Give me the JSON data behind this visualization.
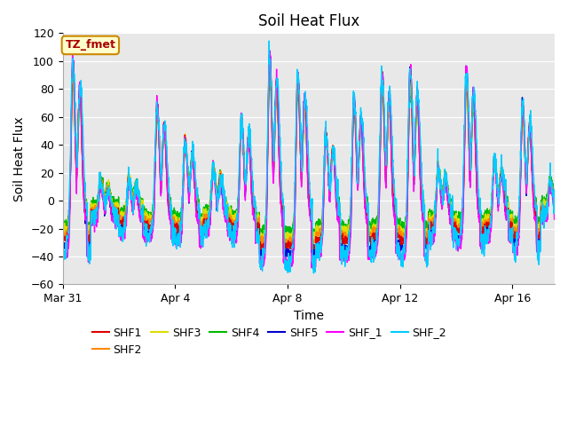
{
  "title": "Soil Heat Flux",
  "xlabel": "Time",
  "ylabel": "Soil Heat Flux",
  "ylim": [
    -60,
    120
  ],
  "yticks": [
    -60,
    -40,
    -20,
    0,
    20,
    40,
    60,
    80,
    100,
    120
  ],
  "x_tick_labels": [
    "Mar 31",
    "Apr 4",
    "Apr 8",
    "Apr 12",
    "Apr 16"
  ],
  "x_tick_positions": [
    0,
    4,
    8,
    12,
    16
  ],
  "series": [
    {
      "name": "SHF1",
      "color": "#dd0000"
    },
    {
      "name": "SHF2",
      "color": "#ff8800"
    },
    {
      "name": "SHF3",
      "color": "#dddd00"
    },
    {
      "name": "SHF4",
      "color": "#00bb00"
    },
    {
      "name": "SHF5",
      "color": "#0000cc"
    },
    {
      "name": "SHF_1",
      "color": "#ff00ff"
    },
    {
      "name": "SHF_2",
      "color": "#00ccff"
    }
  ],
  "annotation_text": "TZ_fmet",
  "annotation_color": "#aa0000",
  "annotation_bg": "#ffffcc",
  "annotation_border": "#cc8800",
  "title_fontsize": 12,
  "axis_label_fontsize": 10,
  "tick_fontsize": 9,
  "legend_fontsize": 9,
  "plot_bg": "#e8e8e8",
  "grid_color": "#ffffff",
  "linewidth": 1.0
}
